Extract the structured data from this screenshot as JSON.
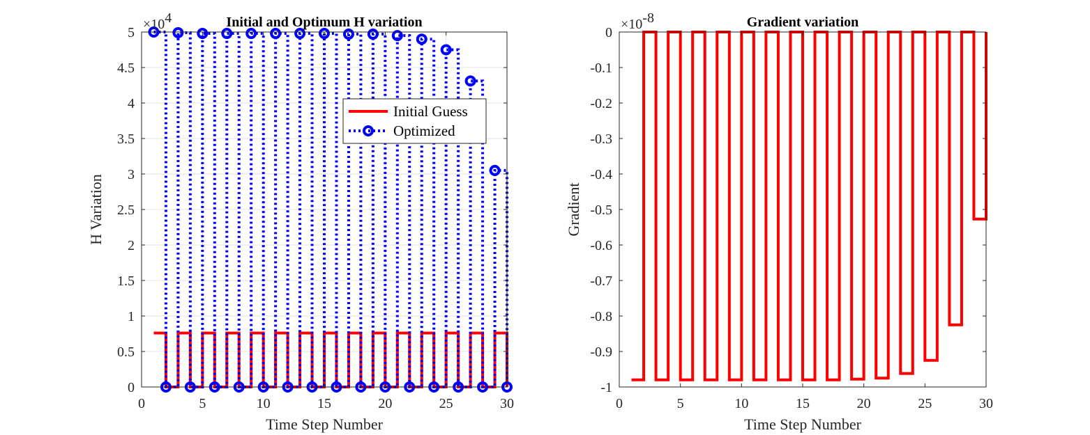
{
  "chart_data": [
    {
      "type": "line",
      "title": "Initial and Optimum H variation",
      "xlabel": "Time Step Number",
      "ylabel": "H Variation",
      "xlim": [
        0,
        30
      ],
      "ylim": [
        0,
        50000
      ],
      "xticks": [
        0,
        5,
        10,
        15,
        20,
        25,
        30
      ],
      "xtick_labels": [
        "0",
        "5",
        "10",
        "15",
        "20",
        "25",
        "30"
      ],
      "yticks": [
        0,
        5000,
        10000,
        15000,
        20000,
        25000,
        30000,
        35000,
        40000,
        45000,
        50000
      ],
      "ytick_labels": [
        "0",
        "0.5",
        "1",
        "1.5",
        "2",
        "2.5",
        "3",
        "3.5",
        "4",
        "4.5",
        "5"
      ],
      "y_multiplier": {
        "base": "×10",
        "exponent": "4"
      },
      "grid": true,
      "legend_position": "upper-right",
      "series": [
        {
          "name": "Initial Guess",
          "color": "#ff0000",
          "style": "solid-stairs",
          "x": [
            1,
            2,
            3,
            4,
            5,
            6,
            7,
            8,
            9,
            10,
            11,
            12,
            13,
            14,
            15,
            16,
            17,
            18,
            19,
            20,
            21,
            22,
            23,
            24,
            25,
            26,
            27,
            28,
            29,
            30
          ],
          "values": [
            7600,
            0,
            7600,
            0,
            7600,
            0,
            7600,
            0,
            7600,
            0,
            7600,
            0,
            7600,
            0,
            7600,
            0,
            7600,
            0,
            7600,
            0,
            7600,
            0,
            7600,
            0,
            7600,
            0,
            7600,
            0,
            7600,
            0
          ]
        },
        {
          "name": "Optimized",
          "color": "#0000ff",
          "style": "dotted-stairs-circles",
          "x": [
            1,
            2,
            3,
            4,
            5,
            6,
            7,
            8,
            9,
            10,
            11,
            12,
            13,
            14,
            15,
            16,
            17,
            18,
            19,
            20,
            21,
            22,
            23,
            24,
            25,
            26,
            27,
            28,
            29,
            30
          ],
          "values": [
            50000,
            0,
            49900,
            0,
            49800,
            0,
            49800,
            0,
            49800,
            0,
            49800,
            0,
            49800,
            0,
            49800,
            0,
            49700,
            0,
            49700,
            0,
            49500,
            0,
            49000,
            0,
            47500,
            0,
            43100,
            0,
            30500,
            0
          ]
        }
      ]
    },
    {
      "type": "line",
      "title": "Gradient variation",
      "xlabel": "Time Step Number",
      "ylabel": "Gradient",
      "xlim": [
        0,
        30
      ],
      "ylim": [
        -1,
        0
      ],
      "xticks": [
        0,
        5,
        10,
        15,
        20,
        25,
        30
      ],
      "xtick_labels": [
        "0",
        "5",
        "10",
        "15",
        "20",
        "25",
        "30"
      ],
      "yticks": [
        -1,
        -0.9,
        -0.8,
        -0.7,
        -0.6,
        -0.5,
        -0.4,
        -0.3,
        -0.2,
        -0.1,
        0
      ],
      "ytick_labels": [
        "-1",
        "-0.9",
        "-0.8",
        "-0.7",
        "-0.6",
        "-0.5",
        "-0.4",
        "-0.3",
        "-0.2",
        "-0.1",
        "0"
      ],
      "y_multiplier": {
        "base": "×10",
        "exponent": "-8"
      },
      "grid": false,
      "series": [
        {
          "color": "#ff0000",
          "style": "solid-stairs",
          "x": [
            1,
            2,
            3,
            4,
            5,
            6,
            7,
            8,
            9,
            10,
            11,
            12,
            13,
            14,
            15,
            16,
            17,
            18,
            19,
            20,
            21,
            22,
            23,
            24,
            25,
            26,
            27,
            28,
            29,
            30
          ],
          "values": [
            -0.98,
            0,
            -0.98,
            0,
            -0.98,
            0,
            -0.98,
            0,
            -0.98,
            0,
            -0.98,
            0,
            -0.98,
            0,
            -0.98,
            0,
            -0.98,
            0,
            -0.978,
            0,
            -0.975,
            0,
            -0.962,
            0,
            -0.925,
            0,
            -0.825,
            0,
            -0.527,
            0
          ]
        }
      ]
    }
  ]
}
